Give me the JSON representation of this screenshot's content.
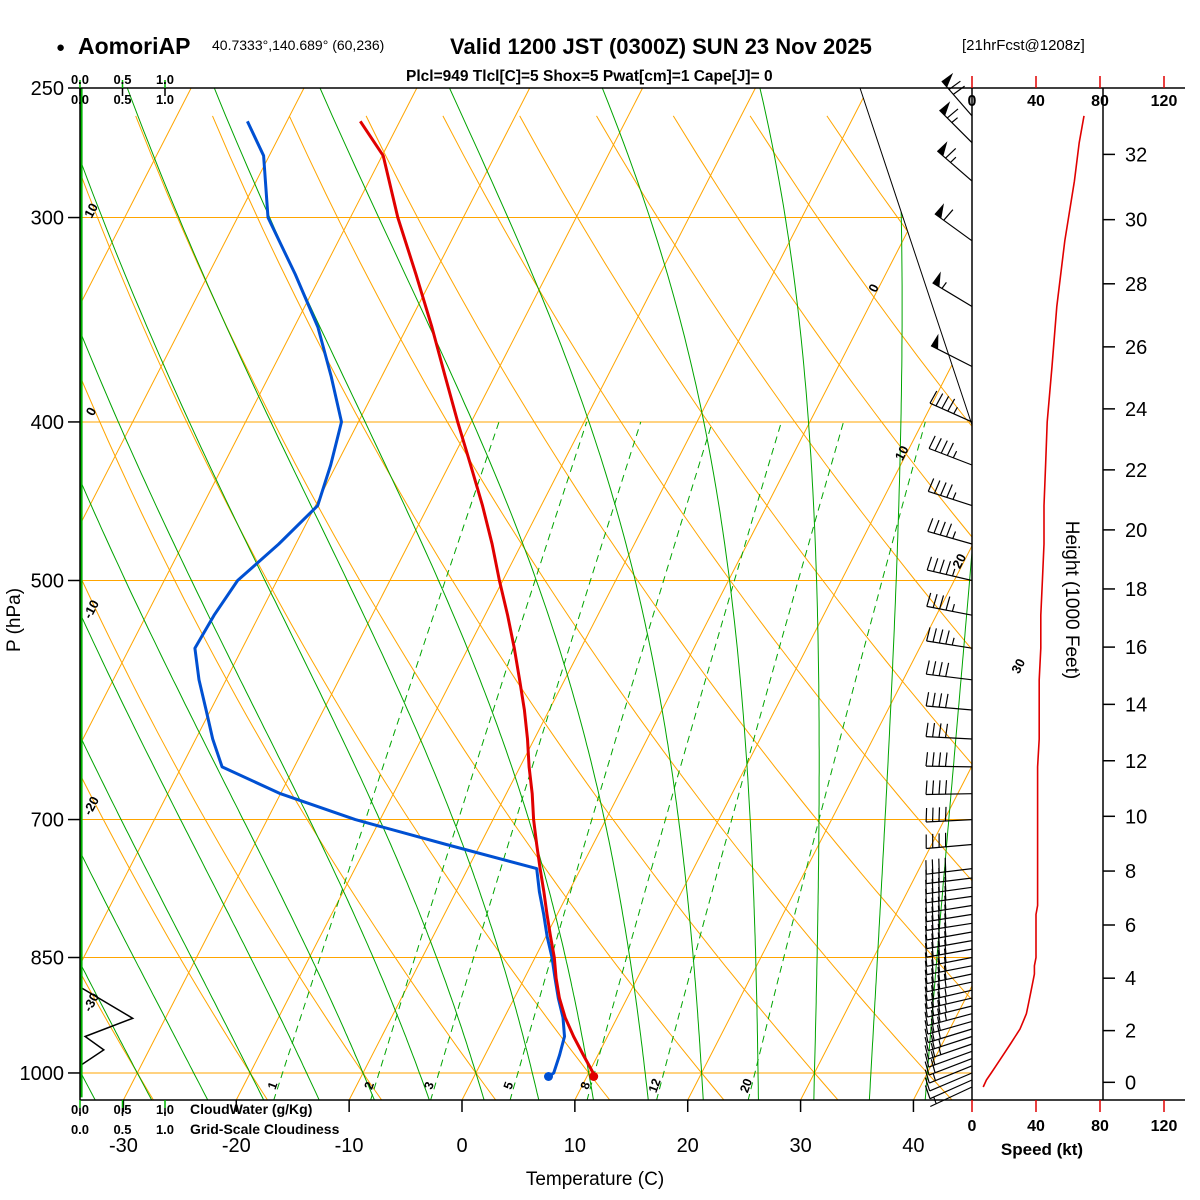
{
  "header": {
    "station_bullet": "●",
    "station": "AomoriAP",
    "coords": "40.7333°,140.689° (60,236)",
    "valid": "Valid 1200 JST (0300Z) SUN 23 Nov 2025",
    "forecast": "[21hrFcst@1208z]",
    "params": "Plcl=949 Tlcl[C]=5 Shox=5 Pwat[cm]=1 Cape[J]= 0"
  },
  "axes": {
    "pressure": {
      "label": "P (hPa)",
      "ticks": [
        250,
        300,
        400,
        500,
        700,
        850,
        1000
      ]
    },
    "temperature": {
      "label": "Temperature (C)",
      "ticks": [
        -30,
        -20,
        -10,
        0,
        10,
        20,
        30,
        40
      ]
    },
    "height": {
      "label": "Height (1000 Feet)",
      "ticks": [
        0,
        2,
        4,
        6,
        8,
        10,
        12,
        14,
        16,
        18,
        20,
        22,
        24,
        26,
        28,
        30,
        32
      ]
    },
    "speed": {
      "label": "Speed (kt)",
      "ticks": [
        0,
        40,
        80,
        120
      ]
    },
    "cloudwater": {
      "label": "CloudWater (g/Kg)",
      "ticks": [
        "0.0",
        "0.5",
        "1.0"
      ]
    },
    "cloudiness": {
      "label": "Grid-Scale Cloudiness",
      "ticks": [
        "0.0",
        "0.5",
        "1.0"
      ]
    }
  },
  "grid_labels": {
    "dry_adiabat": [
      10,
      0,
      -10,
      -20,
      -30
    ],
    "isotherm": [
      0,
      10,
      20,
      30
    ],
    "mixing_ratio": [
      1,
      2,
      3,
      5,
      8,
      12,
      20
    ]
  },
  "chart_data": {
    "type": "skewt_logp_sounding",
    "pressure_axis_hpa": [
      250,
      1040
    ],
    "temperature_axis_c": [
      -30,
      40
    ],
    "height_axis_kft": [
      0,
      32
    ],
    "speed_axis_kt": [
      0,
      120
    ],
    "temperature_c": [
      [
        1005,
        10.6
      ],
      [
        1000,
        10.4
      ],
      [
        975,
        8.7
      ],
      [
        950,
        7.0
      ],
      [
        925,
        5.4
      ],
      [
        900,
        4.0
      ],
      [
        875,
        2.8
      ],
      [
        850,
        1.7
      ],
      [
        825,
        0.4
      ],
      [
        800,
        -0.9
      ],
      [
        775,
        -2.2
      ],
      [
        750,
        -3.6
      ],
      [
        725,
        -5.0
      ],
      [
        700,
        -6.4
      ],
      [
        675,
        -7.7
      ],
      [
        650,
        -9.2
      ],
      [
        625,
        -10.6
      ],
      [
        600,
        -12.2
      ],
      [
        575,
        -14.0
      ],
      [
        550,
        -15.9
      ],
      [
        525,
        -18.0
      ],
      [
        500,
        -20.3
      ],
      [
        475,
        -22.6
      ],
      [
        450,
        -25.2
      ],
      [
        425,
        -28.1
      ],
      [
        400,
        -31.2
      ],
      [
        375,
        -34.4
      ],
      [
        350,
        -37.8
      ],
      [
        325,
        -41.6
      ],
      [
        300,
        -45.8
      ],
      [
        275,
        -49.9
      ],
      [
        262,
        -53.5
      ]
    ],
    "dewpoint_c": [
      [
        1005,
        6.6
      ],
      [
        1000,
        6.9
      ],
      [
        975,
        6.6
      ],
      [
        950,
        6.2
      ],
      [
        925,
        5.2
      ],
      [
        900,
        3.9
      ],
      [
        875,
        2.7
      ],
      [
        850,
        1.5
      ],
      [
        825,
        0.1
      ],
      [
        800,
        -1.2
      ],
      [
        775,
        -2.6
      ],
      [
        750,
        -3.9
      ],
      [
        725,
        -13.0
      ],
      [
        700,
        -22.2
      ],
      [
        675,
        -30.0
      ],
      [
        650,
        -36.4
      ],
      [
        625,
        -38.5
      ],
      [
        600,
        -40.4
      ],
      [
        575,
        -42.4
      ],
      [
        550,
        -44.2
      ],
      [
        525,
        -44.0
      ],
      [
        500,
        -43.5
      ],
      [
        475,
        -41.5
      ],
      [
        450,
        -39.8
      ],
      [
        425,
        -40.5
      ],
      [
        400,
        -41.5
      ],
      [
        375,
        -44.5
      ],
      [
        350,
        -47.9
      ],
      [
        325,
        -52.3
      ],
      [
        300,
        -57.3
      ],
      [
        275,
        -60.5
      ],
      [
        262,
        -63.5
      ]
    ],
    "wind_p_dir_kt": [
      [
        1020,
        245,
        7
      ],
      [
        1010,
        246,
        9
      ],
      [
        1000,
        247,
        12
      ],
      [
        990,
        248,
        15
      ],
      [
        980,
        249,
        18
      ],
      [
        970,
        250,
        21
      ],
      [
        960,
        251,
        24
      ],
      [
        950,
        252,
        27
      ],
      [
        940,
        253,
        30
      ],
      [
        930,
        254,
        32
      ],
      [
        920,
        255,
        34
      ],
      [
        910,
        256,
        35
      ],
      [
        900,
        257,
        36
      ],
      [
        890,
        257,
        37
      ],
      [
        880,
        258,
        38
      ],
      [
        870,
        258,
        39
      ],
      [
        860,
        259,
        39
      ],
      [
        850,
        259,
        40
      ],
      [
        840,
        260,
        40
      ],
      [
        830,
        260,
        40
      ],
      [
        820,
        260,
        40
      ],
      [
        810,
        261,
        40
      ],
      [
        800,
        261,
        40
      ],
      [
        790,
        261,
        41
      ],
      [
        780,
        262,
        41
      ],
      [
        770,
        262,
        41
      ],
      [
        760,
        263,
        41
      ],
      [
        750,
        263,
        41
      ],
      [
        725,
        265,
        41
      ],
      [
        700,
        267,
        41
      ],
      [
        675,
        269,
        41
      ],
      [
        650,
        271,
        41
      ],
      [
        625,
        273,
        42
      ],
      [
        600,
        275,
        42
      ],
      [
        575,
        277,
        42
      ],
      [
        550,
        279,
        43
      ],
      [
        525,
        281,
        43
      ],
      [
        500,
        283,
        44
      ],
      [
        475,
        286,
        45
      ],
      [
        450,
        288,
        45
      ],
      [
        425,
        291,
        46
      ],
      [
        400,
        294,
        47
      ],
      [
        370,
        297,
        50
      ],
      [
        340,
        301,
        53
      ],
      [
        310,
        306,
        58
      ],
      [
        285,
        311,
        64
      ],
      [
        270,
        315,
        67
      ],
      [
        260,
        319,
        70
      ]
    ],
    "cloudiness_p_frac": [
      [
        1035,
        0
      ],
      [
        990,
        0
      ],
      [
        968,
        0.28
      ],
      [
        950,
        0.06
      ],
      [
        926,
        0.62
      ],
      [
        886,
        0
      ],
      [
        700,
        0
      ],
      [
        250,
        0
      ]
    ],
    "cloudwater_p_gkg": [
      [
        1035,
        0
      ],
      [
        250,
        0
      ]
    ]
  },
  "colors": {
    "grid_orange": "#FFA500",
    "line_green": "#00A400",
    "temperature_red": "#E00000",
    "dewpoint_blue": "#0050D2",
    "params_magenta": "#C4007A",
    "cloudwater_green": "#00B400",
    "axis_black": "#000000"
  }
}
